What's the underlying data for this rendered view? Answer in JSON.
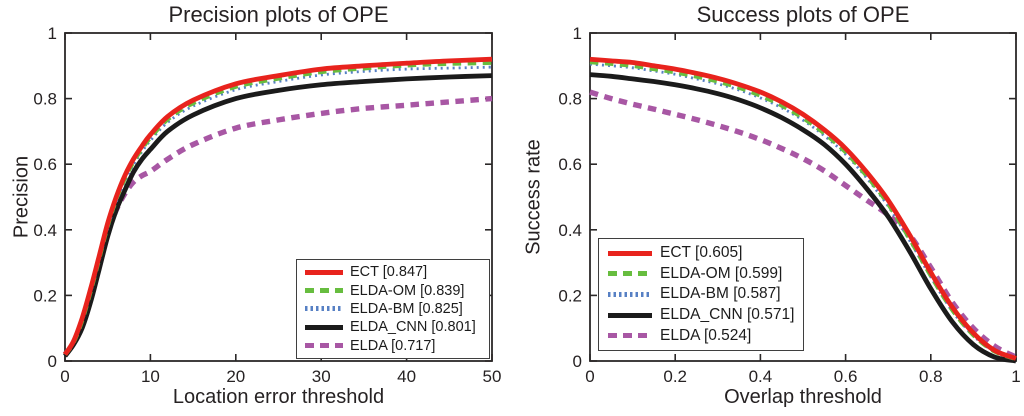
{
  "figure": {
    "background": "#ffffff",
    "axis_color": "#2b2828",
    "text_color": "#262223"
  },
  "chart_data": [
    {
      "type": "line",
      "title": "Precision plots of OPE",
      "xlabel": "Location error threshold",
      "ylabel": "Precision",
      "xlim": [
        0,
        50
      ],
      "ylim": [
        0,
        1
      ],
      "xticks": [
        0,
        10,
        20,
        30,
        40,
        50
      ],
      "xtick_labels": [
        "0",
        "10",
        "20",
        "30",
        "40",
        "50"
      ],
      "yticks": [
        0,
        0.2,
        0.4,
        0.6,
        0.8,
        1
      ],
      "ytick_labels": [
        "0",
        "0.2",
        "0.4",
        "0.6",
        "0.8",
        "1"
      ],
      "grid": false,
      "legend_position": "bottom-right",
      "x": [
        0,
        1,
        2,
        3,
        4,
        5,
        6,
        7,
        8,
        9,
        10,
        12,
        15,
        20,
        25,
        30,
        35,
        40,
        45,
        50
      ],
      "series": [
        {
          "name": "ECT",
          "score": 0.847,
          "label": "ECT [0.847]",
          "color": "#e8231d",
          "style": "solid",
          "values": [
            0.02,
            0.06,
            0.13,
            0.22,
            0.32,
            0.42,
            0.5,
            0.565,
            0.615,
            0.655,
            0.69,
            0.745,
            0.795,
            0.845,
            0.87,
            0.89,
            0.9,
            0.908,
            0.915,
            0.92
          ]
        },
        {
          "name": "ELDA-OM",
          "score": 0.839,
          "label": "ELDA-OM [0.839]",
          "color": "#67bd3f",
          "style": "dashed",
          "values": [
            0.02,
            0.058,
            0.125,
            0.215,
            0.315,
            0.415,
            0.495,
            0.558,
            0.608,
            0.648,
            0.682,
            0.737,
            0.787,
            0.837,
            0.862,
            0.882,
            0.893,
            0.902,
            0.907,
            0.91
          ]
        },
        {
          "name": "ELDA-BM",
          "score": 0.825,
          "label": "ELDA-BM [0.825]",
          "color": "#5780c4",
          "style": "dotted",
          "values": [
            0.02,
            0.055,
            0.12,
            0.208,
            0.306,
            0.405,
            0.485,
            0.548,
            0.598,
            0.638,
            0.672,
            0.727,
            0.777,
            0.827,
            0.852,
            0.872,
            0.883,
            0.89,
            0.893,
            0.896
          ]
        },
        {
          "name": "ELDA_CNN",
          "score": 0.801,
          "label": "ELDA_CNN [0.801]",
          "color": "#1b1b1b",
          "style": "solid",
          "values": [
            0.015,
            0.05,
            0.1,
            0.18,
            0.28,
            0.38,
            0.46,
            0.52,
            0.575,
            0.615,
            0.645,
            0.7,
            0.75,
            0.8,
            0.825,
            0.842,
            0.852,
            0.86,
            0.866,
            0.87
          ]
        },
        {
          "name": "ELDA",
          "score": 0.717,
          "label": "ELDA [0.717]",
          "color": "#a857a4",
          "style": "dashed",
          "values": [
            0.02,
            0.055,
            0.12,
            0.21,
            0.3,
            0.39,
            0.46,
            0.51,
            0.545,
            0.565,
            0.578,
            0.615,
            0.66,
            0.71,
            0.735,
            0.755,
            0.77,
            0.78,
            0.79,
            0.8
          ]
        }
      ]
    },
    {
      "type": "line",
      "title": "Success plots of OPE",
      "xlabel": "Overlap threshold",
      "ylabel": "Success rate",
      "xlim": [
        0,
        1
      ],
      "ylim": [
        0,
        1
      ],
      "xticks": [
        0,
        0.2,
        0.4,
        0.6,
        0.8,
        1
      ],
      "xtick_labels": [
        "0",
        "0.2",
        "0.4",
        "0.6",
        "0.8",
        "1"
      ],
      "yticks": [
        0,
        0.2,
        0.4,
        0.6,
        0.8,
        1
      ],
      "ytick_labels": [
        "0",
        "0.2",
        "0.4",
        "0.6",
        "0.8",
        "1"
      ],
      "grid": false,
      "legend_position": "bottom-left",
      "x": [
        0,
        0.05,
        0.1,
        0.15,
        0.2,
        0.25,
        0.3,
        0.35,
        0.4,
        0.45,
        0.5,
        0.55,
        0.6,
        0.65,
        0.7,
        0.75,
        0.8,
        0.85,
        0.9,
        0.95,
        1.0
      ],
      "series": [
        {
          "name": "ECT",
          "score": 0.605,
          "label": "ECT [0.605]",
          "color": "#e8231d",
          "style": "solid",
          "values": [
            0.92,
            0.915,
            0.91,
            0.9,
            0.89,
            0.877,
            0.862,
            0.843,
            0.82,
            0.79,
            0.752,
            0.705,
            0.648,
            0.575,
            0.49,
            0.385,
            0.27,
            0.165,
            0.085,
            0.032,
            0.008
          ]
        },
        {
          "name": "ELDA-OM",
          "score": 0.599,
          "label": "ELDA-OM [0.599]",
          "color": "#67bd3f",
          "style": "dashed",
          "values": [
            0.912,
            0.907,
            0.901,
            0.891,
            0.881,
            0.868,
            0.853,
            0.834,
            0.81,
            0.78,
            0.742,
            0.695,
            0.638,
            0.565,
            0.48,
            0.375,
            0.262,
            0.158,
            0.08,
            0.03,
            0.007
          ]
        },
        {
          "name": "ELDA-BM",
          "score": 0.587,
          "label": "ELDA-BM [0.587]",
          "color": "#5780c4",
          "style": "dotted",
          "values": [
            0.905,
            0.9,
            0.894,
            0.884,
            0.874,
            0.86,
            0.845,
            0.826,
            0.802,
            0.772,
            0.734,
            0.687,
            0.63,
            0.557,
            0.472,
            0.368,
            0.256,
            0.153,
            0.077,
            0.028,
            0.006
          ]
        },
        {
          "name": "ELDA_CNN",
          "score": 0.571,
          "label": "ELDA_CNN [0.571]",
          "color": "#1b1b1b",
          "style": "solid",
          "values": [
            0.873,
            0.868,
            0.86,
            0.852,
            0.842,
            0.83,
            0.815,
            0.796,
            0.772,
            0.742,
            0.705,
            0.66,
            0.6,
            0.525,
            0.44,
            0.335,
            0.22,
            0.12,
            0.05,
            0.012,
            0.0
          ]
        },
        {
          "name": "ELDA",
          "score": 0.524,
          "label": "ELDA [0.524]",
          "color": "#a857a4",
          "style": "dashed",
          "values": [
            0.82,
            0.8,
            0.783,
            0.768,
            0.752,
            0.736,
            0.718,
            0.698,
            0.675,
            0.648,
            0.617,
            0.58,
            0.535,
            0.49,
            0.445,
            0.385,
            0.285,
            0.18,
            0.1,
            0.045,
            0.012
          ]
        }
      ]
    }
  ]
}
